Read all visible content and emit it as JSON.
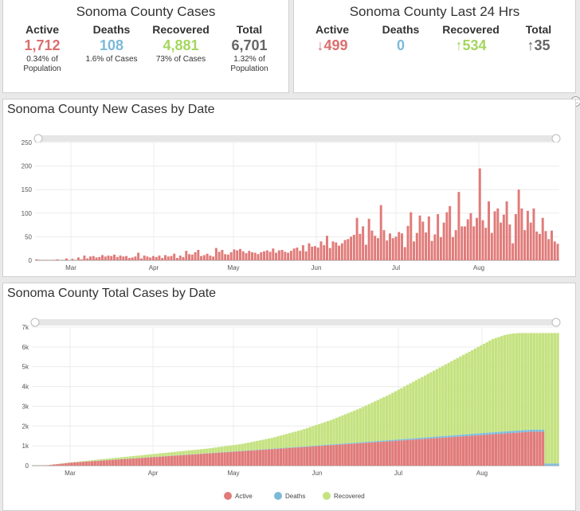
{
  "cases_card": {
    "title": "Sonoma County Cases",
    "columns": [
      {
        "label": "Active",
        "value": "1,712",
        "sub": "0.34% of Population",
        "color": "#d9706e"
      },
      {
        "label": "Deaths",
        "value": "108",
        "sub": "1.6% of Cases",
        "color": "#7bbad8"
      },
      {
        "label": "Recovered",
        "value": "4,881",
        "sub": "73% of Cases",
        "color": "#a4d65e"
      },
      {
        "label": "Total",
        "value": "6,701",
        "sub": "1.32% of Population",
        "color": "#666666"
      }
    ]
  },
  "last24_card": {
    "title": "Sonoma County Last 24 Hrs",
    "columns": [
      {
        "label": "Active",
        "value": "↓499",
        "color": "#d9706e"
      },
      {
        "label": "Deaths",
        "value": "0",
        "color": "#7bbad8"
      },
      {
        "label": "Recovered",
        "value": "↑534",
        "color": "#a4d65e"
      },
      {
        "label": "Total",
        "value": "↑35",
        "color": "#666666"
      }
    ]
  },
  "chart_data": [
    {
      "type": "bar",
      "title": "Sonoma County New Cases by Date",
      "ylim": [
        0,
        250
      ],
      "yticks": [
        "0",
        "50",
        "100",
        "150",
        "200",
        "250"
      ],
      "xticks": [
        "Mar",
        "Apr",
        "May",
        "Jun",
        "Jul",
        "Aug"
      ],
      "color": "#e07b79",
      "grid": true,
      "values": [
        2,
        1,
        0,
        1,
        0,
        0,
        1,
        2,
        0,
        0,
        4,
        0,
        3,
        0,
        6,
        2,
        10,
        4,
        8,
        9,
        6,
        7,
        11,
        8,
        10,
        9,
        12,
        7,
        10,
        8,
        9,
        5,
        6,
        8,
        16,
        4,
        10,
        8,
        6,
        9,
        7,
        10,
        5,
        11,
        8,
        9,
        14,
        5,
        10,
        7,
        20,
        13,
        12,
        17,
        22,
        9,
        11,
        14,
        10,
        8,
        26,
        18,
        22,
        13,
        12,
        17,
        23,
        21,
        24,
        19,
        15,
        20,
        17,
        16,
        13,
        17,
        19,
        21,
        18,
        25,
        16,
        21,
        22,
        18,
        16,
        20,
        25,
        27,
        20,
        32,
        19,
        36,
        29,
        30,
        27,
        40,
        32,
        52,
        26,
        40,
        38,
        31,
        36,
        43,
        45,
        50,
        54,
        90,
        56,
        72,
        33,
        88,
        63,
        52,
        47,
        117,
        64,
        42,
        57,
        47,
        50,
        60,
        57,
        28,
        73,
        102,
        40,
        58,
        95,
        82,
        59,
        93,
        41,
        55,
        98,
        49,
        80,
        102,
        115,
        49,
        64,
        145,
        72,
        72,
        87,
        100,
        72,
        90,
        195,
        85,
        69,
        125,
        58,
        104,
        110,
        80,
        97,
        125,
        76,
        36,
        98,
        150,
        110,
        64,
        105,
        80,
        110,
        61,
        56,
        90,
        62,
        45,
        63,
        40,
        35
      ],
      "category": "",
      "xlabel": "",
      "ylabel": ""
    },
    {
      "type": "area",
      "title": "Sonoma County Total Cases by Date",
      "ylim": [
        0,
        7000
      ],
      "yticks": [
        "0",
        "1k",
        "2k",
        "3k",
        "4k",
        "5k",
        "6k",
        "7k"
      ],
      "xticks": [
        "Mar",
        "Apr",
        "May",
        "Jun",
        "Jul",
        "Aug"
      ],
      "stacked": true,
      "grid": true,
      "legend_position": "bottom",
      "series": [
        {
          "name": "Active",
          "color": "#e07b79"
        },
        {
          "name": "Deaths",
          "color": "#7bbad8"
        },
        {
          "name": "Recovered",
          "color": "#c4e27f"
        }
      ],
      "active_values": [
        0,
        0,
        0,
        5,
        10,
        20,
        40,
        60,
        70,
        90,
        100,
        120,
        140,
        150,
        160,
        170,
        180,
        190,
        200,
        210,
        220,
        230,
        240,
        250,
        260,
        270,
        280,
        290,
        300,
        310,
        320,
        330,
        340,
        350,
        360,
        370,
        380,
        390,
        400,
        410,
        420,
        430,
        440,
        450,
        460,
        470,
        480,
        490,
        500,
        510,
        520,
        530,
        540,
        550,
        560,
        570,
        580,
        590,
        600,
        610,
        620,
        630,
        640,
        650,
        660,
        670,
        680,
        690,
        700,
        710,
        720,
        730,
        740,
        750,
        760,
        770,
        780,
        790,
        800,
        810,
        820,
        830,
        840,
        850,
        860,
        870,
        880,
        890,
        900,
        910,
        920,
        930,
        940,
        950,
        960,
        970,
        980,
        990,
        1000,
        1010,
        1020,
        1030,
        1040,
        1050,
        1060,
        1070,
        1080,
        1090,
        1100,
        1110,
        1120,
        1130,
        1140,
        1150,
        1160,
        1170,
        1180,
        1190,
        1200,
        1210,
        1220,
        1230,
        1240,
        1250,
        1260,
        1270,
        1280,
        1290,
        1300,
        1310,
        1320,
        1330,
        1340,
        1350,
        1360,
        1370,
        1380,
        1390,
        1400,
        1410,
        1420,
        1430,
        1440,
        1450,
        1460,
        1470,
        1480,
        1490,
        1500,
        1510,
        1520,
        1530,
        1540,
        1550,
        1560,
        1570,
        1580,
        1590,
        1600,
        1610,
        1620,
        1630,
        1640,
        1650,
        1660,
        1670,
        1680,
        1690,
        1700,
        1710,
        1712,
        1712,
        1712,
        1712
      ],
      "total_values": [
        5,
        5,
        5,
        10,
        15,
        25,
        45,
        65,
        80,
        100,
        115,
        135,
        155,
        170,
        185,
        200,
        215,
        230,
        245,
        260,
        275,
        290,
        305,
        320,
        335,
        350,
        365,
        380,
        395,
        410,
        425,
        440,
        455,
        470,
        485,
        500,
        515,
        530,
        545,
        560,
        575,
        590,
        605,
        620,
        635,
        650,
        665,
        680,
        695,
        710,
        725,
        740,
        755,
        770,
        785,
        800,
        815,
        830,
        845,
        860,
        880,
        900,
        920,
        940,
        960,
        980,
        1000,
        1020,
        1040,
        1060,
        1080,
        1100,
        1130,
        1160,
        1190,
        1220,
        1250,
        1280,
        1310,
        1340,
        1370,
        1400,
        1440,
        1480,
        1520,
        1560,
        1600,
        1640,
        1680,
        1720,
        1760,
        1800,
        1850,
        1900,
        1950,
        2000,
        2050,
        2100,
        2150,
        2200,
        2250,
        2300,
        2360,
        2420,
        2480,
        2540,
        2600,
        2660,
        2720,
        2780,
        2840,
        2900,
        2970,
        3040,
        3110,
        3180,
        3250,
        3320,
        3390,
        3460,
        3530,
        3600,
        3680,
        3760,
        3840,
        3920,
        4000,
        4080,
        4160,
        4240,
        4320,
        4400,
        4480,
        4560,
        4640,
        4720,
        4800,
        4880,
        4960,
        5040,
        5120,
        5200,
        5280,
        5360,
        5440,
        5520,
        5600,
        5680,
        5760,
        5840,
        5920,
        6000,
        6080,
        6160,
        6240,
        6320,
        6400,
        6450,
        6500,
        6550,
        6600,
        6630,
        6660,
        6680,
        6690,
        6701,
        6701,
        6701,
        6701,
        6701,
        6701,
        6701,
        6701,
        6701,
        6701,
        6701,
        6701,
        6701,
        6701
      ],
      "category": "",
      "xlabel": "",
      "ylabel": ""
    }
  ]
}
